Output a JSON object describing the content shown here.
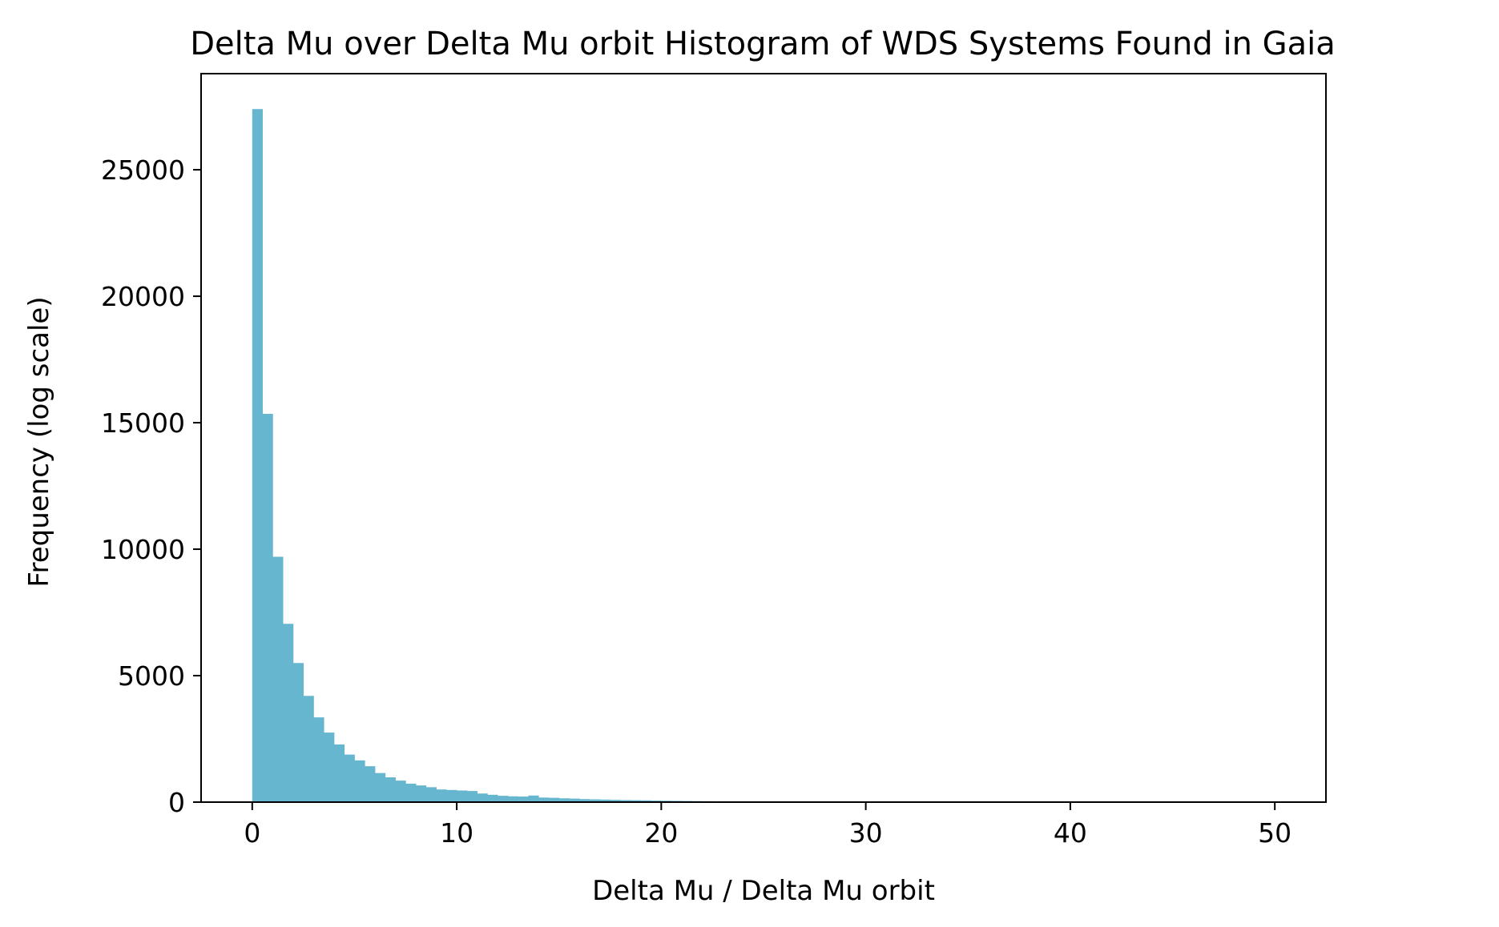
{
  "chart_data": {
    "type": "bar",
    "title": "Delta Mu over Delta Mu orbit Histogram of WDS Systems Found in Gaia",
    "xlabel": "Delta Mu / Delta Mu orbit",
    "ylabel": "Frequency (log scale)",
    "xlim": [
      -2.5,
      52.5
    ],
    "ylim": [
      0,
      28800
    ],
    "xticks": [
      0,
      10,
      20,
      30,
      40,
      50
    ],
    "yticks": [
      0,
      5000,
      10000,
      15000,
      20000,
      25000
    ],
    "grid": false,
    "bar_color": "#67b6cf",
    "bin_width": 0.5,
    "bins_start": [
      0,
      0.5,
      1,
      1.5,
      2,
      2.5,
      3,
      3.5,
      4,
      4.5,
      5,
      5.5,
      6,
      6.5,
      7,
      7.5,
      8,
      8.5,
      9,
      9.5,
      10,
      10.5,
      11,
      11.5,
      12,
      12.5,
      13,
      13.5,
      14,
      14.5,
      15,
      15.5,
      16,
      16.5,
      17,
      17.5,
      18,
      18.5,
      19,
      19.5,
      20,
      20.5,
      21,
      21.5,
      22,
      22.5,
      23,
      23.5
    ],
    "values": [
      27400,
      15350,
      9700,
      7050,
      5500,
      4200,
      3350,
      2750,
      2280,
      1880,
      1650,
      1420,
      1150,
      980,
      850,
      730,
      660,
      590,
      500,
      480,
      460,
      440,
      340,
      290,
      250,
      230,
      220,
      260,
      180,
      170,
      150,
      140,
      120,
      110,
      100,
      90,
      80,
      75,
      70,
      60,
      55,
      50,
      45,
      40,
      35,
      30,
      25,
      20
    ]
  }
}
